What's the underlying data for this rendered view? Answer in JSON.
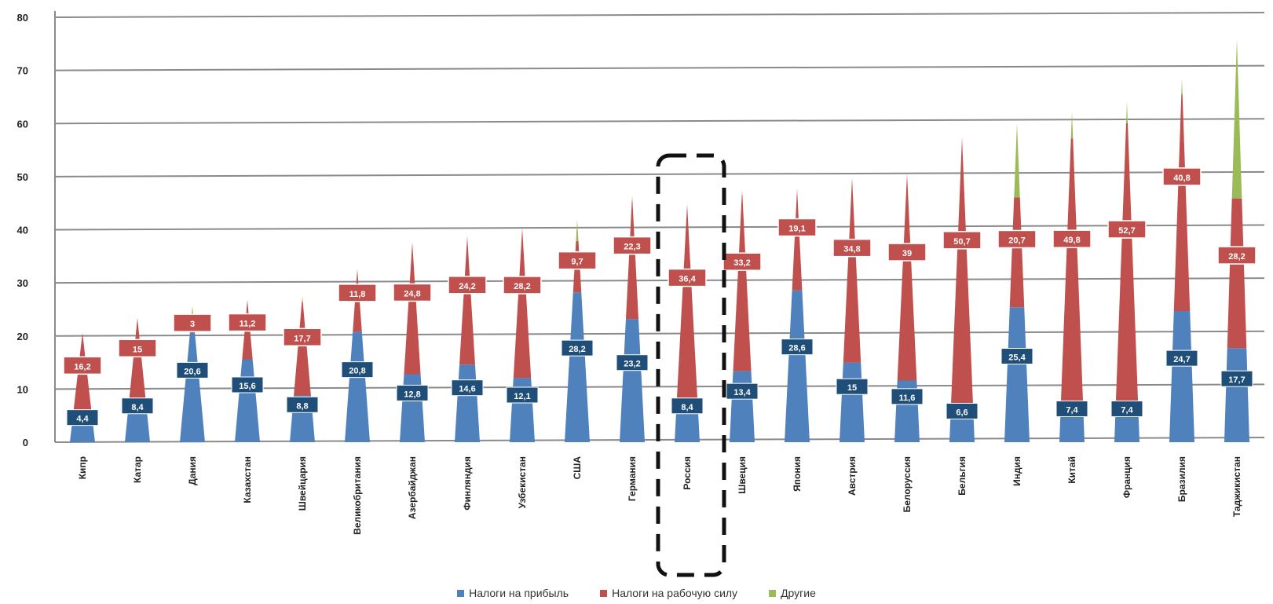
{
  "chart_data": {
    "type": "bar",
    "categories": [
      "Кипр",
      "Катар",
      "Дания",
      "Казахстан",
      "Швейцария",
      "Великобритания",
      "Азербайджан",
      "Финляндия",
      "Узбекистан",
      "США",
      "Германия",
      "Россия",
      "Швеция",
      "Япония",
      "Австрия",
      "Белоруссия",
      "Бельгия",
      "Индия",
      "Китай",
      "Франция",
      "Бразилия",
      "Таджикистан"
    ],
    "series": [
      {
        "name": "Налоги на прибыль",
        "color": "#4f81bd",
        "values": [
          4.4,
          8.4,
          20.6,
          15.6,
          8.8,
          20.8,
          12.8,
          14.6,
          12.1,
          28.2,
          23.2,
          8.4,
          13.4,
          28.6,
          15,
          11.6,
          6.6,
          25.4,
          7.4,
          7.4,
          24.7,
          17.7
        ],
        "labels": [
          "4,4",
          "8,4",
          "20,6",
          "15,6",
          "8,8",
          "20,8",
          "12,8",
          "14,6",
          "12,1",
          "28,2",
          "23,2",
          "8,4",
          "13,4",
          "28,6",
          "15",
          "11,6",
          "6,6",
          "25,4",
          "7,4",
          "7,4",
          "24,7",
          "17,7"
        ]
      },
      {
        "name": "Налоги на рабочую силу",
        "color": "#c0504d",
        "values": [
          16.2,
          15,
          3,
          11.2,
          17.7,
          11.8,
          24.8,
          24.2,
          28.2,
          9.7,
          22.3,
          36.4,
          33.2,
          19.1,
          34.8,
          39,
          50.7,
          20.7,
          49.8,
          52.7,
          40.8,
          28.2
        ],
        "labels": [
          "16,2",
          "15",
          "3",
          "11,2",
          "17,7",
          "11,8",
          "24,8",
          "24,2",
          "28,2",
          "9,7",
          "22,3",
          "36,4",
          "33,2",
          "19,1",
          "34,8",
          "39",
          "50,7",
          "20,7",
          "49,8",
          "52,7",
          "40,8",
          "28,2"
        ]
      },
      {
        "name": "Другие",
        "color": "#9bbb59",
        "values": [
          0,
          0,
          2,
          0,
          1,
          0,
          0,
          0,
          0,
          4,
          1,
          0,
          1,
          0,
          0,
          0,
          0,
          14,
          5,
          4,
          3,
          30
        ],
        "labels": []
      }
    ],
    "yticks": [
      "0",
      "10",
      "20",
      "30",
      "40",
      "50",
      "60",
      "70",
      "80"
    ],
    "ylim": [
      0,
      80
    ],
    "grid": true,
    "legend_position": "bottom",
    "highlight": "Россия"
  }
}
